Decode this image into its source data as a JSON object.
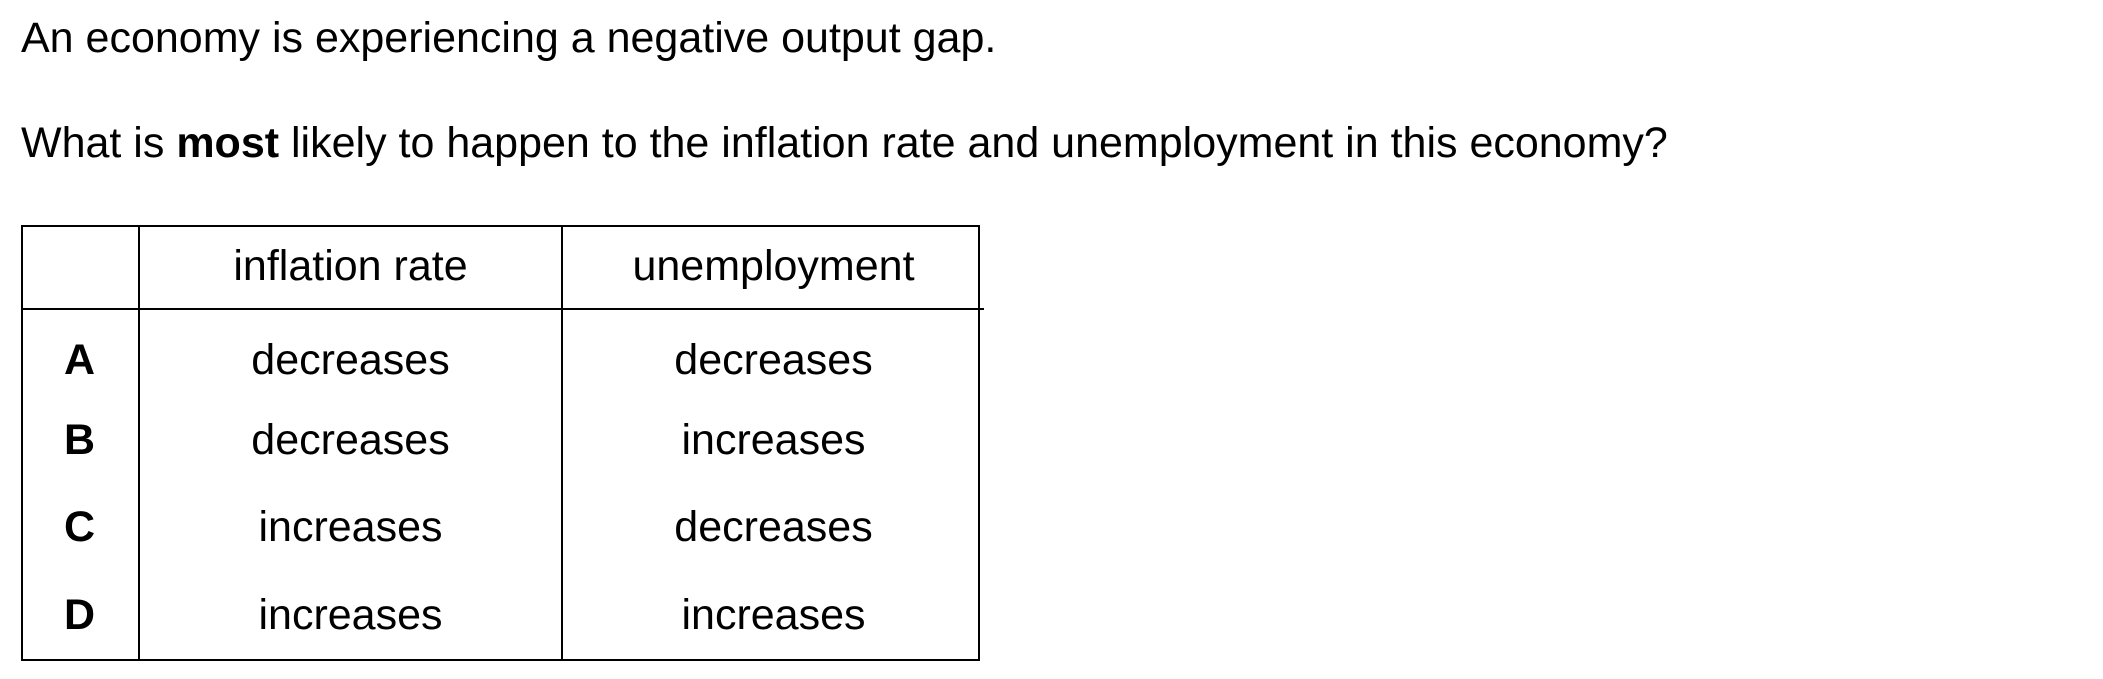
{
  "stem": "An economy is experiencing a negative output gap.",
  "question": {
    "before": "What is ",
    "emphasis": "most",
    "after": " likely to happen to the inflation rate and unemployment in this economy?"
  },
  "table": {
    "headers": [
      "",
      "inflation rate",
      "unemployment"
    ],
    "rows": [
      {
        "key": "A",
        "inflation_rate": "decreases",
        "unemployment": "decreases"
      },
      {
        "key": "B",
        "inflation_rate": "decreases",
        "unemployment": "increases"
      },
      {
        "key": "C",
        "inflation_rate": "increases",
        "unemployment": "decreases"
      },
      {
        "key": "D",
        "inflation_rate": "increases",
        "unemployment": "increases"
      }
    ]
  }
}
